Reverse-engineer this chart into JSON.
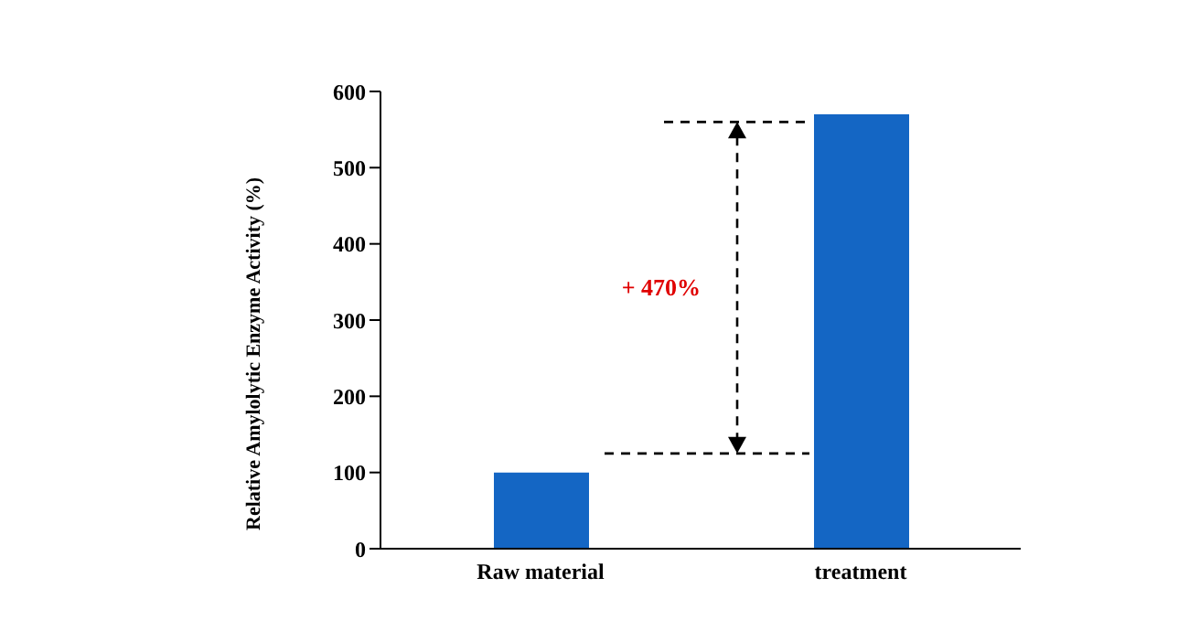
{
  "chart_data": {
    "type": "bar",
    "categories": [
      "Raw material",
      "treatment"
    ],
    "values": [
      100,
      570
    ],
    "color": "#1466c4",
    "ylabel": "Relative Amylolytic Enzyme  Activity (%)",
    "ylim": [
      0,
      600
    ],
    "yticks": [
      0,
      100,
      200,
      300,
      400,
      500,
      600
    ],
    "annotations": [
      "+ 470%"
    ]
  }
}
